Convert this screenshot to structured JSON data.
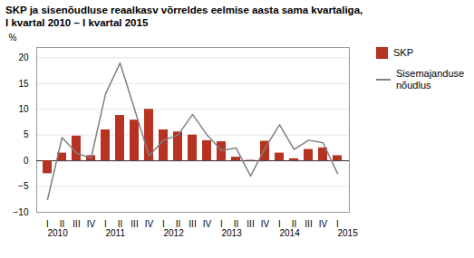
{
  "chart_data": {
    "type": "bar",
    "title": "SKP ja sisenõudluse reaalkasv võrreldes eelmise aasta sama kvartaliga,",
    "subtitle": "I kvartal 2010 – I kvartal 2015",
    "y_label": "%",
    "categories": [
      "I",
      "II",
      "III",
      "IV",
      "I",
      "II",
      "III",
      "IV",
      "I",
      "II",
      "III",
      "IV",
      "I",
      "II",
      "III",
      "IV",
      "I",
      "II",
      "III",
      "IV",
      "I"
    ],
    "series": [
      {
        "name": "SKP",
        "type": "bar",
        "color": "#b53320",
        "values": [
          -2.5,
          1.5,
          4.8,
          1.0,
          6.0,
          8.8,
          7.9,
          10.0,
          6.0,
          5.6,
          5.0,
          3.9,
          3.7,
          0.7,
          0.1,
          3.8,
          1.5,
          0.4,
          2.2,
          2.5,
          1.0
        ]
      },
      {
        "name": "Sisemajanduse\nnõudlus",
        "type": "line",
        "color": "#808080",
        "values": [
          -7.5,
          4.5,
          1.5,
          0.5,
          13.0,
          19.0,
          10.0,
          1.0,
          4.0,
          5.0,
          9.0,
          5.0,
          2.0,
          2.5,
          -3.0,
          2.5,
          7.0,
          2.2,
          4.0,
          3.5,
          -2.5
        ]
      }
    ],
    "annotations": [
      {
        "text": "2010",
        "x": 0
      },
      {
        "text": "2011",
        "x": 4
      },
      {
        "text": "2012",
        "x": 8
      },
      {
        "text": "2013",
        "x": 12
      },
      {
        "text": "2014",
        "x": 16
      },
      {
        "text": "2015",
        "x": 20
      }
    ],
    "ylim": [
      -10,
      22
    ],
    "yticks": [
      -10,
      -5,
      0,
      5,
      10,
      15,
      20
    ],
    "grid": true,
    "legend": "right"
  }
}
